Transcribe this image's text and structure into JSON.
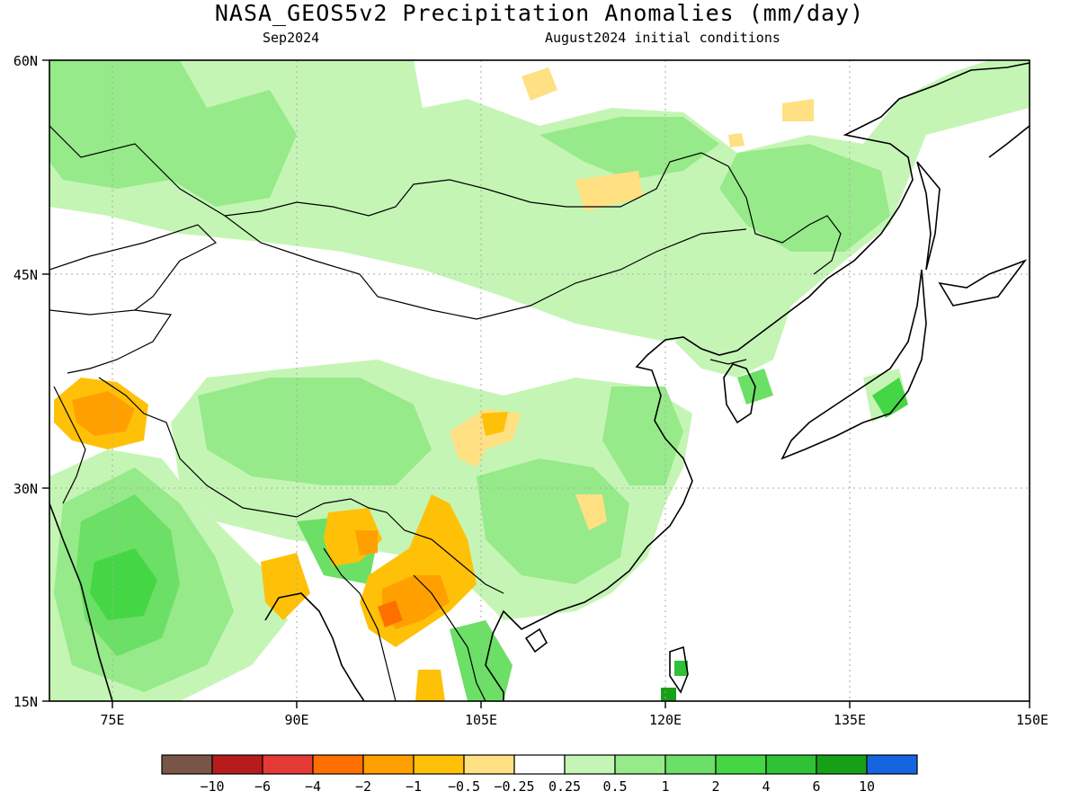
{
  "title": "NASA_GEOS5v2 Precipitation Anomalies (mm/day)",
  "subtitle_left": "Sep2024",
  "subtitle_right": "August2024 initial conditions",
  "lon_ticks": [
    "75E",
    "90E",
    "105E",
    "120E",
    "135E",
    "150E"
  ],
  "lat_ticks": [
    "60N",
    "45N",
    "30N",
    "15N"
  ],
  "legend": {
    "colors": [
      "#795548",
      "#b71c1c",
      "#e53935",
      "#ff6f00",
      "#ffa000",
      "#ffc107",
      "#ffe082",
      "#ffffff",
      "#c5f5b5",
      "#96ea89",
      "#6cdf66",
      "#45d646",
      "#2fc236",
      "#16a018",
      "#1565e0"
    ],
    "labels": [
      "−10",
      "−6",
      "−4",
      "−2",
      "−1",
      "−0.5",
      "−0.25",
      "0.25",
      "0.5",
      "1",
      "2",
      "4",
      "6",
      "10"
    ]
  }
}
